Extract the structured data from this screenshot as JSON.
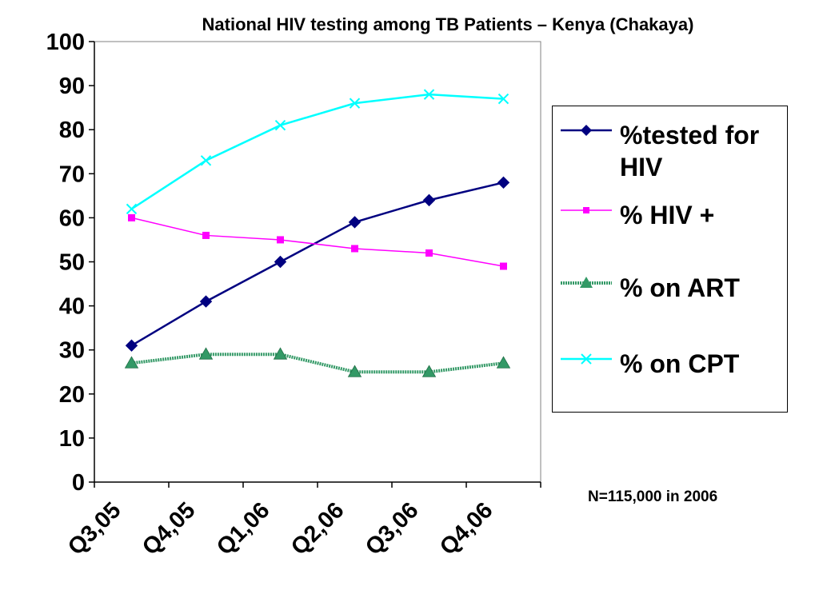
{
  "title": "National HIV testing among TB Patients – Kenya (Chakaya)",
  "note": "N=115,000 in 2006",
  "chart_data": {
    "type": "line",
    "title": "National HIV testing among TB Patients – Kenya (Chakaya)",
    "xlabel": "",
    "ylabel": "",
    "categories": [
      "Q3,05",
      "Q4,05",
      "Q1,06",
      "Q2,06",
      "Q3,06",
      "Q4,06"
    ],
    "ylim": [
      0,
      100
    ],
    "yticks": [
      0,
      10,
      20,
      30,
      40,
      50,
      60,
      70,
      80,
      90,
      100
    ],
    "grid": false,
    "legend_position": "right",
    "series": [
      {
        "name": "%tested for HIV",
        "color": "#000080",
        "marker": "diamond",
        "values": [
          31,
          41,
          50,
          59,
          64,
          68
        ]
      },
      {
        "name": "% HIV +",
        "color": "#ff00ff",
        "marker": "square",
        "values": [
          60,
          56,
          55,
          53,
          52,
          49
        ]
      },
      {
        "name": "% on ART",
        "color": "#339966",
        "marker": "triangle",
        "values": [
          27,
          29,
          29,
          25,
          25,
          27
        ]
      },
      {
        "name": "% on CPT",
        "color": "#00ffff",
        "marker": "x",
        "values": [
          62,
          73,
          81,
          86,
          88,
          87
        ]
      }
    ]
  }
}
